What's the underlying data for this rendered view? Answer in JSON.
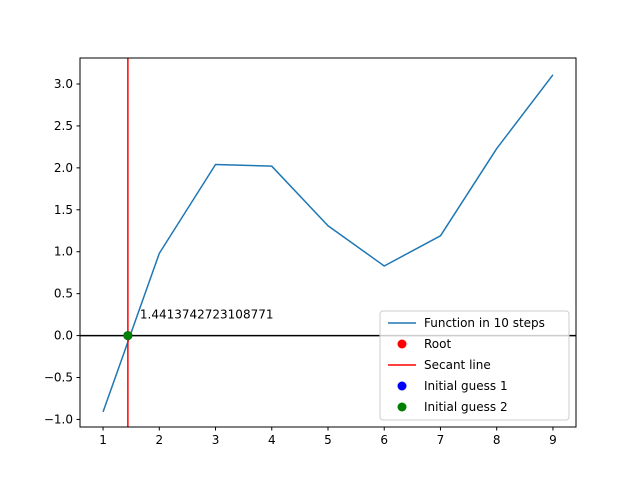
{
  "chart_data": {
    "type": "line",
    "title": "",
    "xlabel": "",
    "ylabel": "",
    "xlim": [
      0.59,
      9.41
    ],
    "ylim": [
      -1.09,
      3.31
    ],
    "xticks": [
      1,
      2,
      3,
      4,
      5,
      6,
      7,
      8,
      9
    ],
    "yticks": [
      -1.0,
      -0.5,
      0.0,
      0.5,
      1.0,
      1.5,
      2.0,
      2.5,
      3.0
    ],
    "xtick_labels": [
      "1",
      "2",
      "3",
      "4",
      "5",
      "6",
      "7",
      "8",
      "9"
    ],
    "ytick_labels": [
      "−1.0",
      "−0.5",
      "0.0",
      "0.5",
      "1.0",
      "1.5",
      "2.0",
      "2.5",
      "3.0"
    ],
    "grid": false,
    "legend_position": "lower-right",
    "series": [
      {
        "name": "Function in 10 steps",
        "kind": "line",
        "color": "#1f77b4",
        "x": [
          1,
          2,
          3,
          4,
          5,
          6,
          7,
          8,
          9
        ],
        "y": [
          -0.91,
          0.98,
          2.04,
          2.02,
          1.31,
          0.83,
          1.19,
          2.23,
          3.11
        ]
      },
      {
        "name": "Root",
        "kind": "point",
        "color": "#ff0000",
        "x": [
          1.4413742723108771
        ],
        "y": [
          0.0
        ]
      },
      {
        "name": "Secant line",
        "kind": "vline",
        "color": "#ff0000",
        "x": [
          1.4413742723108771
        ]
      },
      {
        "name": "Initial guess 1",
        "kind": "point",
        "color": "#0000ff",
        "x": [
          1.4413742723108771
        ],
        "y": [
          0.0
        ]
      },
      {
        "name": "Initial guess 2",
        "kind": "point",
        "color": "#008000",
        "x": [
          1.4413742723108771
        ],
        "y": [
          0.0
        ]
      }
    ],
    "hline": {
      "y": 0.0,
      "color": "#000000"
    },
    "annotation": {
      "text": "1.4413742723108771",
      "x": 1.4413742723108771,
      "y": 0.0
    }
  }
}
